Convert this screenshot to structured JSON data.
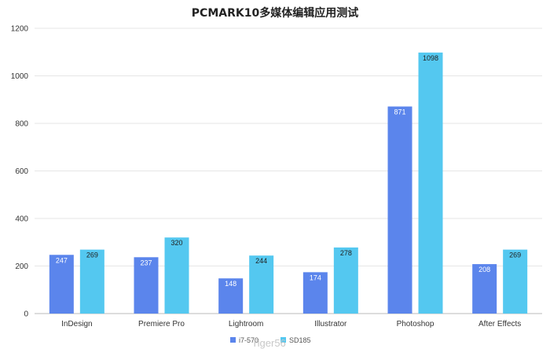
{
  "chart_data": {
    "type": "bar",
    "title": "PCMARK10多媒体编辑应用测试",
    "xlabel": "",
    "ylabel": "",
    "ylim": [
      0,
      1200
    ],
    "yticks": [
      0,
      200,
      400,
      600,
      800,
      1000,
      1200
    ],
    "grid": true,
    "legend_position": "bottom",
    "categories": [
      "InDesign",
      "Premiere Pro",
      "Lightroom",
      "Illustrator",
      "Photoshop",
      "After Effects"
    ],
    "series": [
      {
        "name": "i7-570",
        "color": "#5b85ec",
        "values": [
          247,
          237,
          148,
          174,
          871,
          208
        ]
      },
      {
        "name": "SD185",
        "color": "#54c8f0",
        "values": [
          269,
          320,
          244,
          278,
          1098,
          269
        ]
      }
    ],
    "watermark": "Tiger56"
  }
}
